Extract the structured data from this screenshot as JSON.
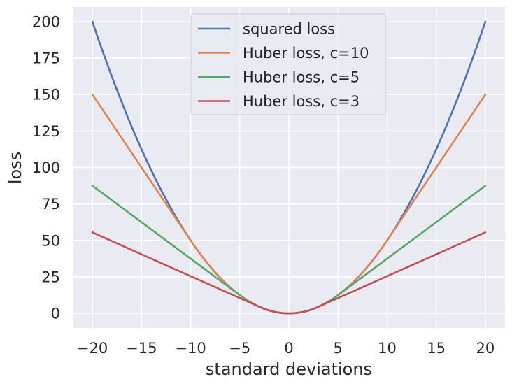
{
  "chart_data": {
    "type": "line",
    "xlabel": "standard deviations",
    "ylabel": "loss",
    "xlim": [
      -22,
      22
    ],
    "ylim": [
      -10,
      210
    ],
    "xticks": [
      -20,
      -15,
      -10,
      -5,
      0,
      5,
      10,
      15,
      20
    ],
    "xtick_labels": [
      "−20",
      "−15",
      "−10",
      "−5",
      "0",
      "5",
      "10",
      "15",
      "20"
    ],
    "yticks": [
      0,
      25,
      50,
      75,
      100,
      125,
      150,
      175,
      200
    ],
    "ytick_labels": [
      "0",
      "25",
      "50",
      "75",
      "100",
      "125",
      "150",
      "175",
      "200"
    ],
    "grid": true,
    "legend_position": "top-center",
    "x_range": [
      -20,
      20
    ],
    "series": [
      {
        "name": "squared loss",
        "function": "0.5*x^2",
        "color": "#4c72b0"
      },
      {
        "name": "Huber loss, c=10",
        "function": "huber",
        "c": 10,
        "color": "#dd8452"
      },
      {
        "name": "Huber loss, c=5",
        "function": "huber",
        "c": 5,
        "color": "#55a868"
      },
      {
        "name": "Huber loss, c=3",
        "function": "huber",
        "c": 3,
        "color": "#c44e52"
      }
    ],
    "background_color": "#eaeaf2",
    "grid_color": "#ffffff"
  }
}
